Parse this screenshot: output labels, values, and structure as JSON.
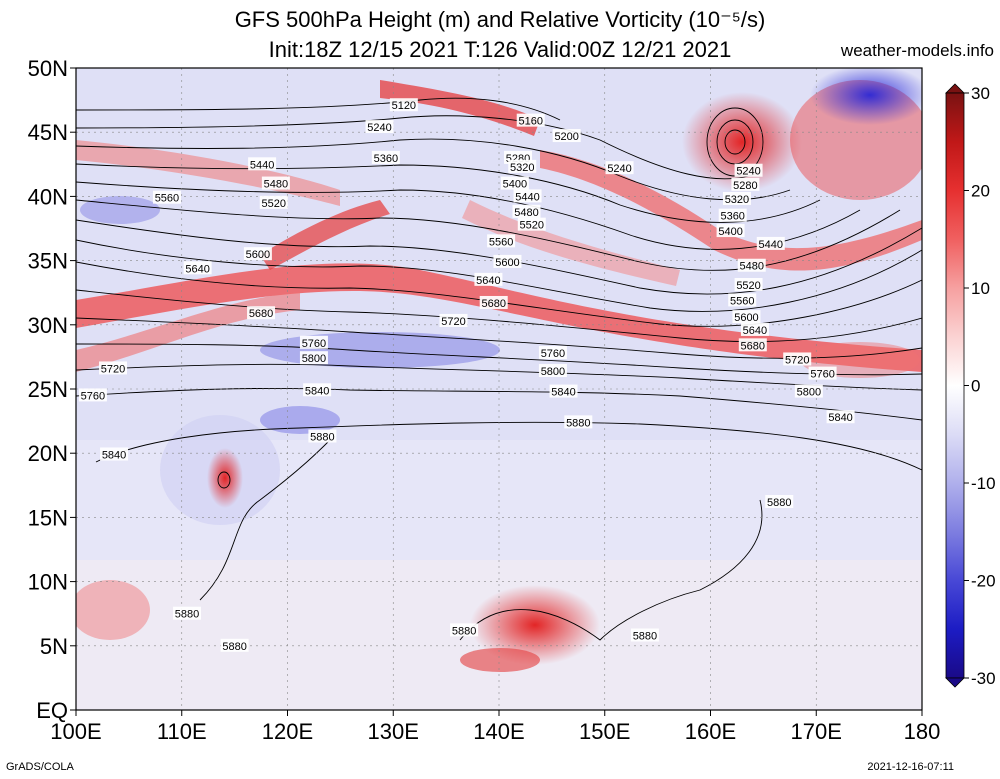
{
  "title": {
    "line1": "GFS 500hPa Height (m) and Relative Vorticity (10⁻⁵/s)",
    "line2": "Init:18Z 12/15 2021 T:126 Valid:00Z 12/21 2021"
  },
  "site": "weather-models.info",
  "footer": {
    "left": "GrADS/COLA",
    "right": "2021-12-16-07:11"
  },
  "map": {
    "lon_range": [
      100,
      180
    ],
    "lat_range": [
      0,
      50
    ],
    "lon_ticks": [
      "100E",
      "110E",
      "120E",
      "130E",
      "140E",
      "150E",
      "160E",
      "170E",
      "180"
    ],
    "lat_ticks": [
      "EQ",
      "5N",
      "10N",
      "15N",
      "20N",
      "25N",
      "30N",
      "35N",
      "40N",
      "45N",
      "50N"
    ],
    "contour_labels": [
      {
        "text": "5120",
        "lon": 131,
        "lat": 47.1
      },
      {
        "text": "5160",
        "lon": 143,
        "lat": 45.9
      },
      {
        "text": "5200",
        "lon": 146.4,
        "lat": 44.7
      },
      {
        "text": "5240",
        "lon": 128.7,
        "lat": 45.4
      },
      {
        "text": "5240",
        "lon": 151.4,
        "lat": 42.2
      },
      {
        "text": "5240",
        "lon": 163.6,
        "lat": 42.0
      },
      {
        "text": "5280",
        "lon": 141.8,
        "lat": 43.0
      },
      {
        "text": "5280",
        "lon": 163.3,
        "lat": 40.9
      },
      {
        "text": "5320",
        "lon": 142.2,
        "lat": 42.3
      },
      {
        "text": "5320",
        "lon": 162.5,
        "lat": 39.8
      },
      {
        "text": "5360",
        "lon": 129.3,
        "lat": 43.0
      },
      {
        "text": "5360",
        "lon": 162.1,
        "lat": 38.5
      },
      {
        "text": "5400",
        "lon": 141.5,
        "lat": 41.0
      },
      {
        "text": "5400",
        "lon": 161.9,
        "lat": 37.3
      },
      {
        "text": "5440",
        "lon": 117.6,
        "lat": 42.5
      },
      {
        "text": "5440",
        "lon": 142.7,
        "lat": 40.0
      },
      {
        "text": "5440",
        "lon": 165.7,
        "lat": 36.3
      },
      {
        "text": "5480",
        "lon": 118.9,
        "lat": 41.0
      },
      {
        "text": "5480",
        "lon": 142.6,
        "lat": 38.8
      },
      {
        "text": "5480",
        "lon": 163.9,
        "lat": 34.6
      },
      {
        "text": "5520",
        "lon": 118.7,
        "lat": 39.5
      },
      {
        "text": "5520",
        "lon": 143.1,
        "lat": 37.8
      },
      {
        "text": "5520",
        "lon": 163.6,
        "lat": 33.1
      },
      {
        "text": "5560",
        "lon": 108.6,
        "lat": 39.9
      },
      {
        "text": "5560",
        "lon": 140.2,
        "lat": 36.5
      },
      {
        "text": "5560",
        "lon": 163.0,
        "lat": 31.9
      },
      {
        "text": "5600",
        "lon": 117.2,
        "lat": 35.5
      },
      {
        "text": "5600",
        "lon": 140.8,
        "lat": 34.9
      },
      {
        "text": "5600",
        "lon": 163.4,
        "lat": 30.6
      },
      {
        "text": "5640",
        "lon": 111.5,
        "lat": 34.4
      },
      {
        "text": "5640",
        "lon": 139.0,
        "lat": 33.5
      },
      {
        "text": "5640",
        "lon": 164.2,
        "lat": 29.6
      },
      {
        "text": "5680",
        "lon": 117.5,
        "lat": 30.9
      },
      {
        "text": "5680",
        "lon": 139.5,
        "lat": 31.7
      },
      {
        "text": "5680",
        "lon": 164.0,
        "lat": 28.4
      },
      {
        "text": "5720",
        "lon": 135.7,
        "lat": 30.3
      },
      {
        "text": "5720",
        "lon": 103.5,
        "lat": 26.6
      },
      {
        "text": "5720",
        "lon": 168.2,
        "lat": 27.3
      },
      {
        "text": "5760",
        "lon": 122.5,
        "lat": 28.6
      },
      {
        "text": "5760",
        "lon": 145.1,
        "lat": 27.8
      },
      {
        "text": "5760",
        "lon": 170.6,
        "lat": 26.2
      },
      {
        "text": "5760",
        "lon": 101.6,
        "lat": 24.5
      },
      {
        "text": "5800",
        "lon": 122.5,
        "lat": 27.4
      },
      {
        "text": "5800",
        "lon": 145.1,
        "lat": 26.4
      },
      {
        "text": "5800",
        "lon": 169.3,
        "lat": 24.8
      },
      {
        "text": "5840",
        "lon": 122.8,
        "lat": 24.9
      },
      {
        "text": "5840",
        "lon": 146.1,
        "lat": 24.8
      },
      {
        "text": "5840",
        "lon": 172.3,
        "lat": 22.8
      },
      {
        "text": "5840",
        "lon": 103.6,
        "lat": 19.9
      },
      {
        "text": "5880",
        "lon": 123.3,
        "lat": 21.3
      },
      {
        "text": "5880",
        "lon": 147.5,
        "lat": 22.4
      },
      {
        "text": "5880",
        "lon": 166.5,
        "lat": 16.2
      },
      {
        "text": "5880",
        "lon": 110.5,
        "lat": 7.5
      },
      {
        "text": "5880",
        "lon": 115.0,
        "lat": 5.0
      },
      {
        "text": "5880",
        "lon": 136.7,
        "lat": 6.2
      },
      {
        "text": "5880",
        "lon": 153.8,
        "lat": 5.8
      }
    ]
  },
  "colorbar": {
    "ticks": [
      "30",
      "20",
      "10",
      "0",
      "-10",
      "-20",
      "-30"
    ],
    "colors_top_to_bottom": [
      "#7a1212",
      "#c01818",
      "#e63030",
      "#f06060",
      "#f6a0a0",
      "#fbd2d2",
      "#ffffff",
      "#dcdcf6",
      "#b0b0ec",
      "#7e7ee0",
      "#4848d6",
      "#1c1cc4",
      "#1a0a88"
    ]
  }
}
